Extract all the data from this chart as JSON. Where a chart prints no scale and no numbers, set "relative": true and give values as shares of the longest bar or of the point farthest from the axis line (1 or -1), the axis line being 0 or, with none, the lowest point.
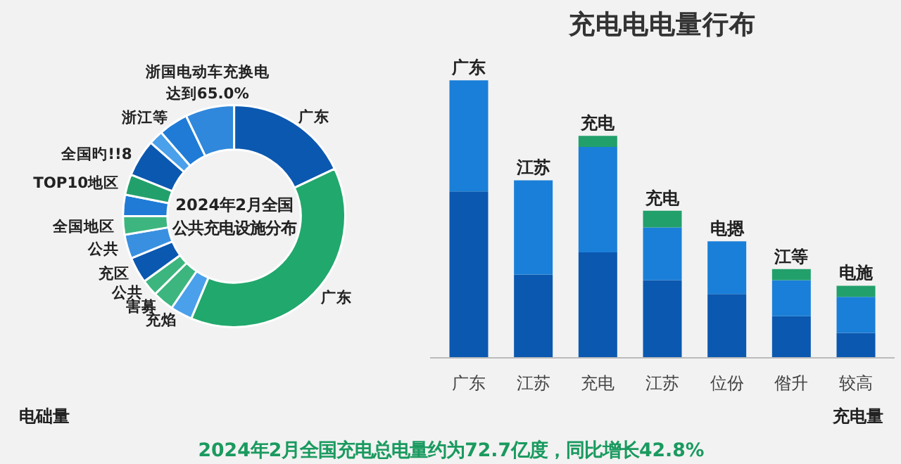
{
  "chart_data": [
    {
      "type": "donut",
      "title": "2024年2月全国公共充电设施分布",
      "categories": [
        "广东",
        "广东",
        "充焰",
        "害募",
        "公共",
        "充区",
        "公共",
        "全国地区",
        null,
        "TOP10地区",
        "全国旳!!8",
        null,
        "浙江等",
        "浙国电动车充换电达到65.0%"
      ],
      "values": [
        18.0,
        38.3,
        3.2,
        3.1,
        2.4,
        3.8,
        3.5,
        2.7,
        3.1,
        3.0,
        5.4,
        2.1,
        4.3,
        7.1
      ],
      "colors": [
        "#0b58b0",
        "#21a86c",
        "#4aa0ea",
        "#3cb67e",
        "#3cb67e",
        "#0b58b0",
        "#3a90e0",
        "#3cb67e",
        "#1f7bd6",
        "#22a06b",
        "#0b58b0",
        "#4aa0ea",
        "#1f7bd6",
        "#2f88dc"
      ]
    },
    {
      "type": "bar",
      "title": "充电电电量行布",
      "stacked": true,
      "categories": [
        "广东",
        "江苏",
        "充电",
        "江苏",
        "位份",
        "偺升",
        "较高"
      ],
      "relative": true,
      "series": [
        {
          "color": "#0b58b0",
          "values": [
            0.6,
            0.3,
            0.38,
            0.28,
            0.23,
            0.15,
            0.09
          ]
        },
        {
          "color": "#1a7fd8",
          "values": [
            0.4,
            0.34,
            0.38,
            0.19,
            0.19,
            0.13,
            0.13
          ]
        },
        {
          "color": "#22a06b",
          "values": [
            null,
            null,
            0.04,
            0.06,
            null,
            0.04,
            0.04
          ]
        }
      ],
      "annotations": [
        "广东",
        "江苏",
        "充电",
        "充电",
        "电摁",
        "江等",
        "电施"
      ]
    },
    {
      "type": "other",
      "annotations": [
        "电础量",
        "充电量",
        "2024年2月全国充电总电量约为72.7亿度，同比增长42.8%"
      ]
    }
  ]
}
